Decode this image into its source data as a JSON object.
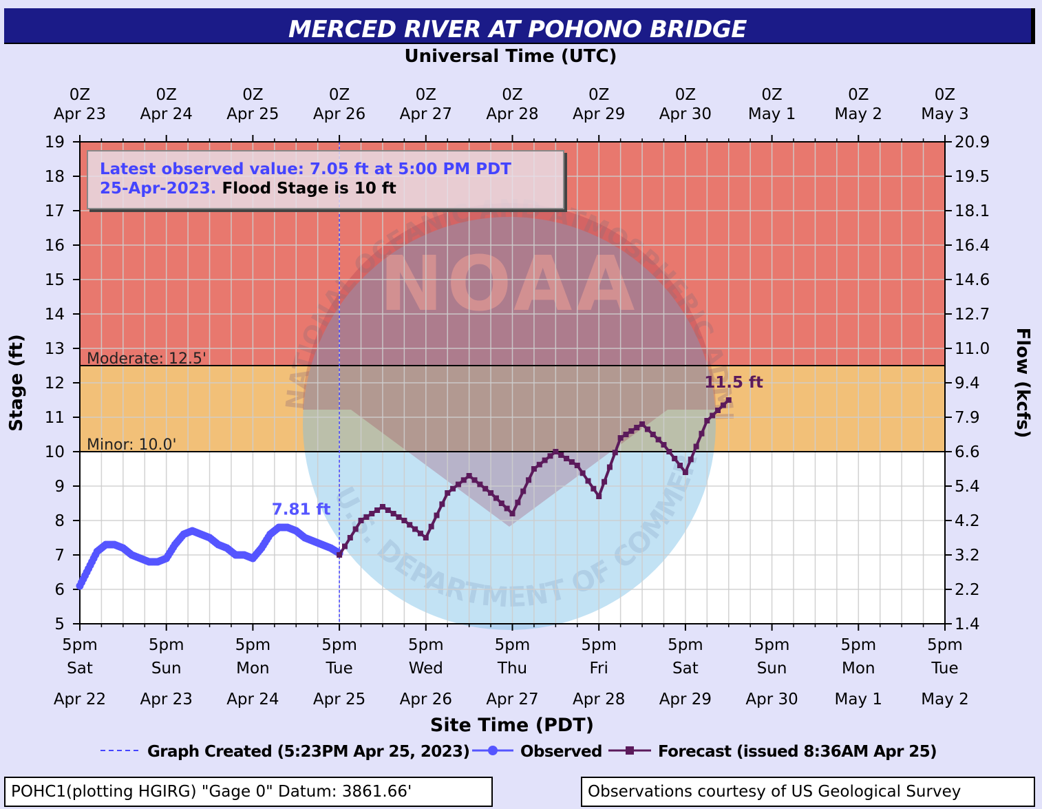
{
  "title": "MERCED RIVER AT POHONO BRIDGE",
  "top_axis_title": "Universal Time (UTC)",
  "bottom_axis_title": "Site Time (PDT)",
  "left_axis_title": "Stage (ft)",
  "right_axis_title": "Flow (kcfs)",
  "info_box": {
    "line1_blue": "Latest observed value: 7.05 ft at 5:00 PM PDT",
    "line2_blue": "25-Apr-2023.",
    "line2_black": " Flood Stage is 10 ft"
  },
  "legend": {
    "graph_created": "Graph Created (5:23PM Apr 25, 2023)",
    "observed": "Observed",
    "forecast": "Forecast (issued 8:36AM Apr 25)"
  },
  "footer_left": "POHC1(plotting HGIRG) \"Gage 0\" Datum: 3861.66'",
  "footer_right": "Observations courtesy of US Geological Survey",
  "watermark": {
    "name": "noara-seal-watermark",
    "text_top": "NATIONAL OCEANIC AND ATMOSPHERIC ADMINISTRATION",
    "text_bottom": "U.S. DEPARTMENT OF COMMERCE",
    "center_text": "NOAA"
  },
  "colors": {
    "observed": "#5555ff",
    "forecast": "#5b1a5b",
    "moderate_band": "#e8786e",
    "minor_band": "#f2c078",
    "graph_created_line": "#4444ff",
    "background": "#e2e2fa"
  },
  "chart_data": {
    "type": "line",
    "y_left": {
      "label": "Stage (ft)",
      "range": [
        5,
        19
      ],
      "ticks": [
        5,
        6,
        7,
        8,
        9,
        10,
        11,
        12,
        13,
        14,
        15,
        16,
        17,
        18,
        19
      ]
    },
    "y_right": {
      "label": "Flow (kcfs)",
      "ticks": [
        "20.9",
        "19.5",
        "18.1",
        "16.4",
        "14.6",
        "12.7",
        "11.0",
        "9.4",
        "7.9",
        "6.6",
        "5.4",
        "4.2",
        "3.2",
        "2.2",
        "1.4"
      ]
    },
    "x_top_ticks": [
      {
        "line1": "0Z",
        "line2": "Apr 23"
      },
      {
        "line1": "0Z",
        "line2": "Apr 24"
      },
      {
        "line1": "0Z",
        "line2": "Apr 25"
      },
      {
        "line1": "0Z",
        "line2": "Apr 26"
      },
      {
        "line1": "0Z",
        "line2": "Apr 27"
      },
      {
        "line1": "0Z",
        "line2": "Apr 28"
      },
      {
        "line1": "0Z",
        "line2": "Apr 29"
      },
      {
        "line1": "0Z",
        "line2": "Apr 30"
      },
      {
        "line1": "0Z",
        "line2": "May  1"
      },
      {
        "line1": "0Z",
        "line2": "May  2"
      },
      {
        "line1": "0Z",
        "line2": "May  3"
      }
    ],
    "x_bottom_ticks": [
      {
        "time": "5pm",
        "day": "Sat",
        "date": "Apr 22"
      },
      {
        "time": "5pm",
        "day": "Sun",
        "date": "Apr 23"
      },
      {
        "time": "5pm",
        "day": "Mon",
        "date": "Apr 24"
      },
      {
        "time": "5pm",
        "day": "Tue",
        "date": "Apr 25"
      },
      {
        "time": "5pm",
        "day": "Wed",
        "date": "Apr 26"
      },
      {
        "time": "5pm",
        "day": "Thu",
        "date": "Apr 27"
      },
      {
        "time": "5pm",
        "day": "Fri",
        "date": "Apr 28"
      },
      {
        "time": "5pm",
        "day": "Sat",
        "date": "Apr 29"
      },
      {
        "time": "5pm",
        "day": "Sun",
        "date": "Apr 30"
      },
      {
        "time": "5pm",
        "day": "Mon",
        "date": "May 1"
      },
      {
        "time": "5pm",
        "day": "Tue",
        "date": "May 2"
      }
    ],
    "thresholds": [
      {
        "name": "minor",
        "label": "Minor: 10.0'",
        "value": 10.0
      },
      {
        "name": "moderate",
        "label": "Moderate: 12.5'",
        "value": 12.5
      }
    ],
    "graph_created_day": 3.0,
    "series": [
      {
        "name": "Observed",
        "x_days_since_apr22_5pm": [
          0.0,
          0.1,
          0.2,
          0.3,
          0.4,
          0.5,
          0.6,
          0.7,
          0.8,
          0.9,
          1.0,
          1.1,
          1.2,
          1.3,
          1.4,
          1.5,
          1.6,
          1.7,
          1.8,
          1.9,
          2.0,
          2.1,
          2.2,
          2.3,
          2.4,
          2.5,
          2.6,
          2.7,
          2.8,
          2.9,
          3.0
        ],
        "y": [
          6.1,
          6.6,
          7.1,
          7.3,
          7.3,
          7.2,
          7.0,
          6.9,
          6.8,
          6.8,
          6.9,
          7.3,
          7.6,
          7.7,
          7.6,
          7.5,
          7.3,
          7.2,
          7.0,
          7.0,
          6.9,
          7.2,
          7.6,
          7.8,
          7.8,
          7.7,
          7.5,
          7.4,
          7.3,
          7.2,
          7.05
        ]
      },
      {
        "name": "Forecast",
        "x_days_since_apr22_5pm": [
          3.0,
          3.25,
          3.5,
          3.75,
          4.0,
          4.25,
          4.5,
          4.75,
          5.0,
          5.25,
          5.5,
          5.75,
          6.0,
          6.25,
          6.5,
          6.75,
          7.0,
          7.25,
          7.5
        ],
        "y": [
          7.0,
          8.0,
          8.4,
          8.0,
          7.5,
          8.8,
          9.3,
          8.8,
          8.2,
          9.5,
          10.0,
          9.6,
          8.7,
          10.4,
          10.8,
          10.2,
          9.4,
          10.9,
          11.5
        ]
      }
    ],
    "annotations": [
      {
        "text": "7.81 ft",
        "x": 2.4,
        "y": 7.81,
        "series": "Observed"
      },
      {
        "text": "11.5 ft",
        "x": 7.4,
        "y": 11.5,
        "series": "Forecast"
      }
    ],
    "grid": true
  }
}
